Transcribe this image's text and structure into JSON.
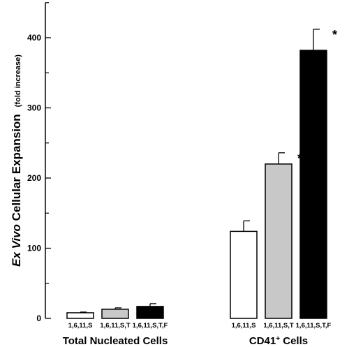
{
  "chart_data": {
    "type": "bar",
    "ylabel_italic": "Ex Vivo",
    "ylabel_rest": " Cellular Expansion",
    "ylabel_unit": "(fold increase)",
    "ylim": [
      0,
      450
    ],
    "yticks": [
      0,
      100,
      200,
      300,
      400
    ],
    "grid": false,
    "groups": [
      {
        "label": "Total Nucleated Cells",
        "label_main": "Total Nucleated Cells",
        "label_sup": "",
        "label_tail": "",
        "bars": [
          {
            "category": "1,6,11,S",
            "value": 8,
            "error": 1,
            "color": "#ffffff",
            "star": ""
          },
          {
            "category": "1,6,11,S,T",
            "value": 13,
            "error": 2,
            "color": "#c8c8c8",
            "star": ""
          },
          {
            "category": "1,6,11,S,T,F",
            "value": 17,
            "error": 4,
            "color": "#000000",
            "star": ""
          }
        ]
      },
      {
        "label": "CD41+ Cells",
        "label_main": "CD41",
        "label_sup": "+",
        "label_tail": " Cells",
        "bars": [
          {
            "category": "1,6,11,S",
            "value": 124,
            "error": 15,
            "color": "#ffffff",
            "star": ""
          },
          {
            "category": "1,6,11,S,T",
            "value": 220,
            "error": 16,
            "color": "#c8c8c8",
            "star": "*"
          },
          {
            "category": "1,6,11,S,T,F",
            "value": 382,
            "error": 30,
            "color": "#000000",
            "star": "*"
          }
        ]
      }
    ]
  }
}
